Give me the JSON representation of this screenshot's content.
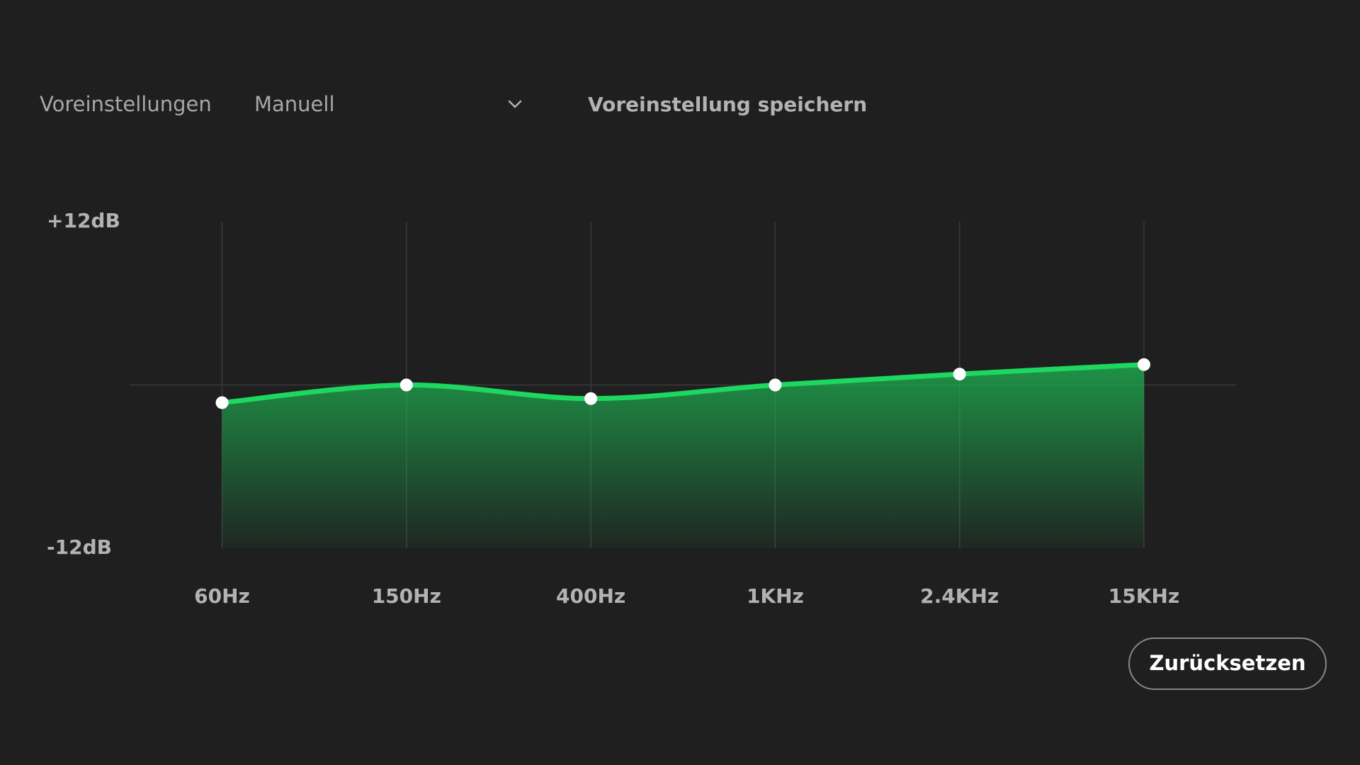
{
  "toolbar": {
    "presets_label": "Voreinstellungen",
    "preset_value": "Manuell",
    "save_preset": "Voreinstellung speichern"
  },
  "chart_data": {
    "type": "line",
    "categories": [
      "60Hz",
      "150Hz",
      "400Hz",
      "1KHz",
      "2.4KHz",
      "15KHz"
    ],
    "values": [
      -1.3,
      0,
      -1,
      0,
      0.8,
      1.5
    ],
    "color": "#1ed760",
    "ylim": [
      -12,
      12
    ],
    "yticks": [
      {
        "value": 12,
        "label": "+12dB"
      },
      {
        "value": -12,
        "label": "-12dB"
      }
    ],
    "grid": true,
    "zero_line": true,
    "area": true,
    "smooth": true
  },
  "reset_button": "Zurücksetzen"
}
